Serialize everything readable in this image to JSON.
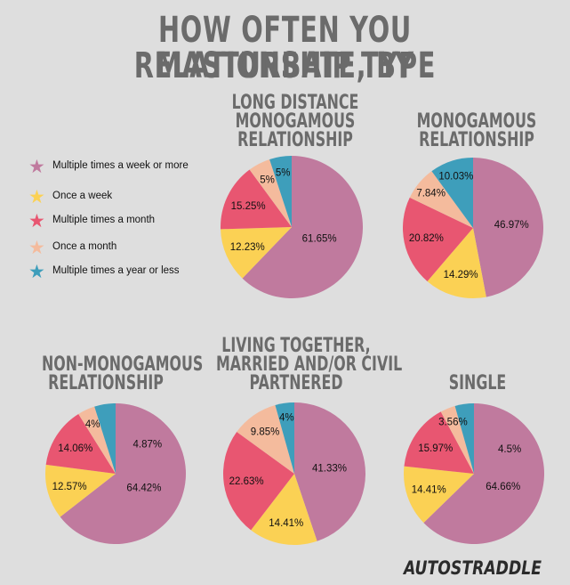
{
  "title_line1": "HOW OFTEN YOU MASTURBATE, BY",
  "title_line2": "RELATIONSHIP TYPE",
  "colors": {
    "multiple_week": "#c07a9e",
    "once_week": "#fbd154",
    "multiple_month": "#e85671",
    "once_month": "#f4bb9d",
    "multiple_year": "#3e9ebb"
  },
  "legend": [
    {
      "label": "Multiple times a week or more",
      "color_key": "multiple_week"
    },
    {
      "label": "Once a week",
      "color_key": "once_week"
    },
    {
      "label": "Multiple times a month",
      "color_key": "multiple_month"
    },
    {
      "label": "Once a month",
      "color_key": "once_month"
    },
    {
      "label": "Multiple times a year or less",
      "color_key": "multiple_year"
    }
  ],
  "logo_text": "AUTOSTRADDLE",
  "chart_data": [
    {
      "type": "pie",
      "title_lines": [
        "LONG DISTANCE",
        "MONOGAMOUS",
        "RELATIONSHIP"
      ],
      "categories": [
        "Multiple times a week or more",
        "Once a week",
        "Multiple times a month",
        "Once a month",
        "Multiple times a year or less"
      ],
      "values": [
        61.65,
        12.23,
        15.25,
        5,
        5
      ],
      "labels": [
        "61.65%",
        "12.23%",
        "15.25%",
        "5%",
        "5%"
      ]
    },
    {
      "type": "pie",
      "title_lines": [
        "MONOGAMOUS",
        "RELATIONSHIP"
      ],
      "categories": [
        "Multiple times a week or more",
        "Once a week",
        "Multiple times a month",
        "Once a month",
        "Multiple times a year or less"
      ],
      "values": [
        46.97,
        14.29,
        20.82,
        7.84,
        10.03
      ],
      "labels": [
        "46.97%",
        "14.29%",
        "20.82%",
        "7.84%",
        "10.03%"
      ]
    },
    {
      "type": "pie",
      "title_lines": [
        "NON-MONOGAMOUS",
        "RELATIONSHIP"
      ],
      "categories": [
        "Multiple times a week or more",
        "Once a week",
        "Multiple times a month",
        "Once a month",
        "Multiple times a year or less"
      ],
      "values": [
        64.42,
        12.57,
        14.06,
        4,
        4.87
      ],
      "labels": [
        "64.42%",
        "12.57%",
        "14.06%",
        "4%",
        "4.87%"
      ]
    },
    {
      "type": "pie",
      "title_lines": [
        "LIVING TOGETHER,",
        "MARRIED AND/OR CIVIL",
        "PARTNERED"
      ],
      "categories": [
        "Multiple times a week or more",
        "Once a week",
        "Multiple times a month",
        "Once a month",
        "Multiple times a year or less"
      ],
      "values": [
        41.33,
        14.41,
        22.63,
        9.85,
        4
      ],
      "labels": [
        "41.33%",
        "14.41%",
        "22.63%",
        "9.85%",
        "4%"
      ]
    },
    {
      "type": "pie",
      "title_lines": [
        "SINGLE"
      ],
      "categories": [
        "Multiple times a week or more",
        "Once a week",
        "Multiple times a month",
        "Once a month",
        "Multiple times a year or less"
      ],
      "values": [
        64.66,
        14.41,
        15.97,
        3.56,
        4.5
      ],
      "labels": [
        "64.66%",
        "14.41%",
        "15.97%",
        "3.56%",
        "4.5%"
      ]
    }
  ]
}
